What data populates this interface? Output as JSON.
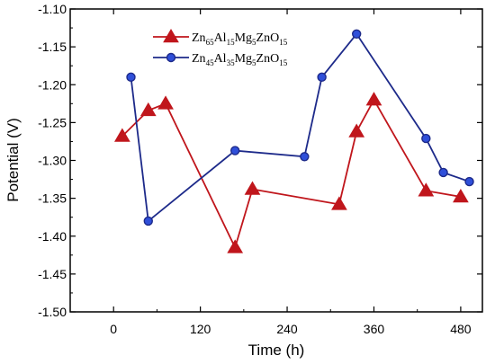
{
  "chart_data": {
    "type": "line",
    "xlabel": "Time (h)",
    "ylabel": "Potential (V)",
    "xlim": [
      -60,
      510
    ],
    "ylim": [
      -1.5,
      -1.1
    ],
    "x_ticks": [
      0,
      120,
      240,
      360,
      480
    ],
    "y_ticks": [
      -1.1,
      -1.15,
      -1.2,
      -1.25,
      -1.3,
      -1.35,
      -1.4,
      -1.45,
      -1.5
    ],
    "grid": false,
    "legend_position": "top-center",
    "series": [
      {
        "name": "Zn65Al15Mg5ZnO15",
        "legend_parts": [
          [
            "Zn",
            ""
          ],
          [
            "65",
            "sub"
          ],
          [
            "Al",
            ""
          ],
          [
            "15",
            "sub"
          ],
          [
            "Mg",
            ""
          ],
          [
            "5",
            "sub"
          ],
          [
            "ZnO",
            ""
          ],
          [
            "15",
            "sub"
          ]
        ],
        "color": "#c0161c",
        "marker": "triangle",
        "x": [
          12,
          48,
          72,
          168,
          192,
          312,
          336,
          360,
          432,
          480
        ],
        "y": [
          -1.268,
          -1.234,
          -1.225,
          -1.415,
          -1.338,
          -1.358,
          -1.262,
          -1.22,
          -1.34,
          -1.348
        ]
      },
      {
        "name": "Zn45Al35Mg5ZnO15",
        "legend_parts": [
          [
            "Zn",
            ""
          ],
          [
            "45",
            "sub"
          ],
          [
            "Al",
            ""
          ],
          [
            "35",
            "sub"
          ],
          [
            "Mg",
            ""
          ],
          [
            "5",
            "sub"
          ],
          [
            "ZnO",
            ""
          ],
          [
            "15",
            "sub"
          ]
        ],
        "color": "#1d2a8a",
        "marker": "circle",
        "x": [
          24,
          48,
          168,
          264,
          288,
          336,
          432,
          456,
          492
        ],
        "y": [
          -1.19,
          -1.38,
          -1.287,
          -1.295,
          -1.19,
          -1.133,
          -1.271,
          -1.316,
          -1.328
        ]
      }
    ]
  }
}
